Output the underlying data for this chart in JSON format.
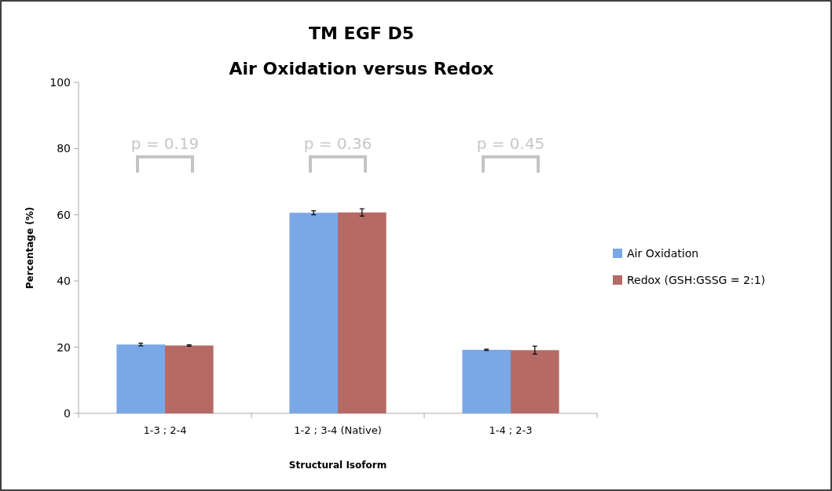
{
  "chart_data": {
    "type": "bar",
    "title": "TM EGF D5",
    "subtitle": "Air Oxidation versus Redox",
    "xlabel": "Structural Isoform",
    "ylabel": "Percentage (%)",
    "categories": [
      "1-3 ; 2-4",
      "1-2 ; 3-4 (Native)",
      "1-4 ; 2-3"
    ],
    "series": [
      {
        "name": "Air Oxidation",
        "color": "#7aa7e6",
        "values": [
          20.8,
          60.6,
          19.2
        ],
        "errors": [
          0.4,
          0.6,
          0.2
        ]
      },
      {
        "name": "Redox (GSH:GSSG = 2:1)",
        "color": "#b56a66",
        "values": [
          20.5,
          60.7,
          19.1
        ],
        "errors": [
          0.2,
          1.1,
          1.2
        ]
      }
    ],
    "ylim": [
      0,
      100
    ],
    "yticks": [
      0,
      20,
      40,
      60,
      80,
      100
    ],
    "grid": false,
    "legend": "right",
    "annotations": [
      "p = 0.19",
      "p = 0.36",
      "p = 0.45"
    ]
  }
}
